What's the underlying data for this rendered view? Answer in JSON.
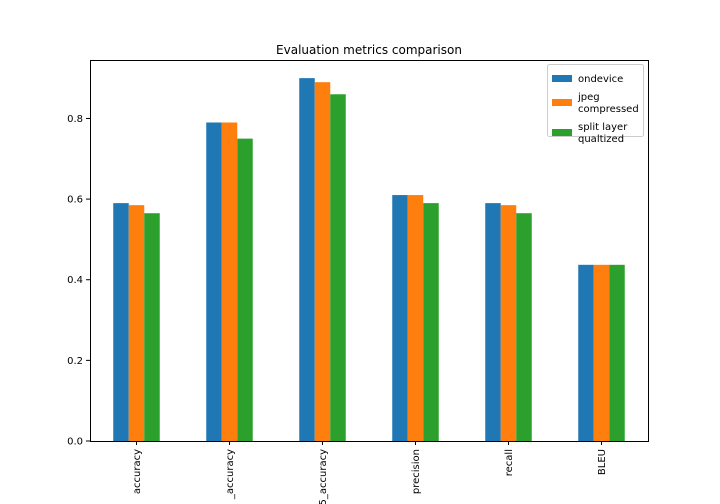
{
  "chart_data": {
    "type": "bar",
    "title": "Evaluation metrics comparison",
    "xlabel": "",
    "ylabel": "",
    "categories": [
      "accuracy",
      "_accuracy",
      "5_accuracy",
      "precision",
      "recall",
      "BLEU"
    ],
    "series": [
      {
        "name": "ondevice",
        "color": "#1f77b4",
        "values": [
          0.59,
          0.79,
          0.9,
          0.61,
          0.59,
          0.437
        ]
      },
      {
        "name": "jpeg\ncompressed",
        "color": "#ff7f0e",
        "values": [
          0.585,
          0.79,
          0.89,
          0.61,
          0.585,
          0.437
        ]
      },
      {
        "name": "split layer\nqualtized",
        "color": "#2ca02c",
        "values": [
          0.565,
          0.75,
          0.86,
          0.59,
          0.565,
          0.437
        ]
      }
    ],
    "yticks": [
      0.0,
      0.2,
      0.4,
      0.6,
      0.8
    ],
    "ytick_labels": [
      "0.0",
      "0.2",
      "0.4",
      "0.6",
      "0.8"
    ],
    "ylim": [
      0,
      0.945
    ],
    "grid": false,
    "legend_position": "top-right"
  }
}
